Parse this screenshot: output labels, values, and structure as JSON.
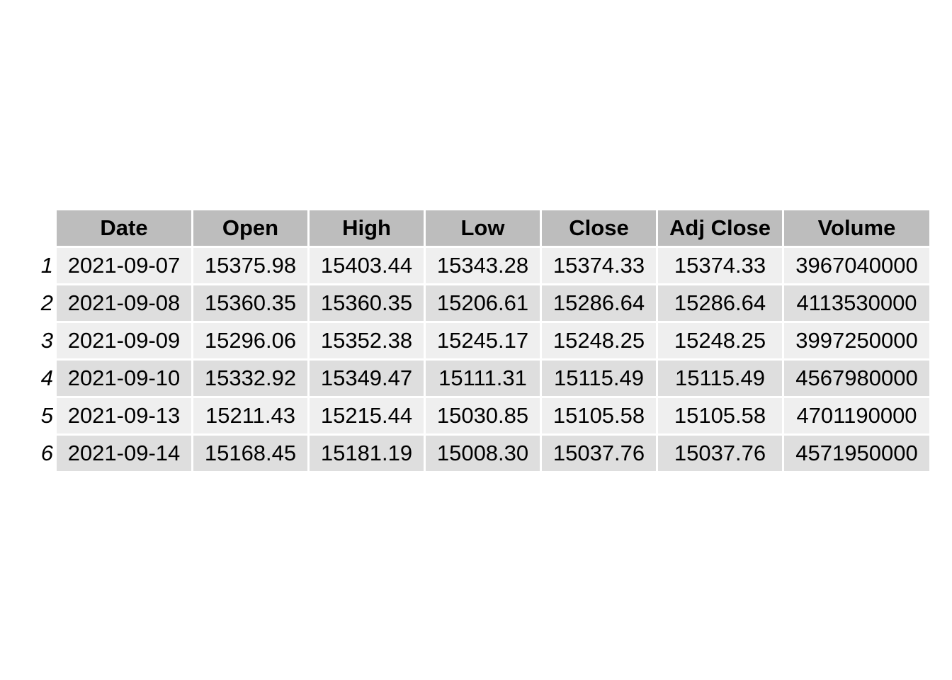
{
  "chart_data": {
    "type": "table",
    "columns": [
      "Date",
      "Open",
      "High",
      "Low",
      "Close",
      "Adj Close",
      "Volume"
    ],
    "row_names": [
      "1",
      "2",
      "3",
      "4",
      "5",
      "6"
    ],
    "rows": [
      [
        "2021-09-07",
        "15375.98",
        "15403.44",
        "15343.28",
        "15374.33",
        "15374.33",
        "3967040000"
      ],
      [
        "2021-09-08",
        "15360.35",
        "15360.35",
        "15206.61",
        "15286.64",
        "15286.64",
        "4113530000"
      ],
      [
        "2021-09-09",
        "15296.06",
        "15352.38",
        "15245.17",
        "15248.25",
        "15248.25",
        "3997250000"
      ],
      [
        "2021-09-10",
        "15332.92",
        "15349.47",
        "15111.31",
        "15115.49",
        "15115.49",
        "4567980000"
      ],
      [
        "2021-09-13",
        "15211.43",
        "15215.44",
        "15030.85",
        "15105.58",
        "15105.58",
        "4701190000"
      ],
      [
        "2021-09-14",
        "15168.45",
        "15181.19",
        "15008.30",
        "15037.76",
        "15037.76",
        "4571950000"
      ]
    ],
    "header_color": "#bdbdbd",
    "row_colors": [
      "#efefef",
      "#dedede"
    ]
  }
}
